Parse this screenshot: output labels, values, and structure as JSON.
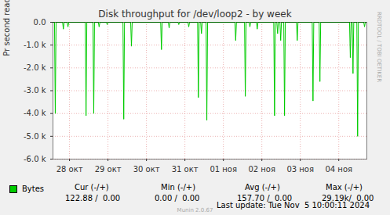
{
  "chart_data": {
    "type": "line",
    "title": "Disk throughput for /dev/loop2 - by week",
    "y_label": "Pr second read (-) / write (+)",
    "x": [
      0.07,
      0.11,
      0.13,
      0.15,
      0.32,
      0.34,
      0.36,
      0.44,
      0.46,
      0.48,
      0.91,
      0.93,
      0.95,
      1.11,
      1.13,
      1.15,
      1.25,
      1.27,
      1.29,
      1.46,
      1.48,
      1.5,
      1.89,
      1.91,
      1.93,
      2.09,
      2.11,
      2.13,
      2.87,
      2.89,
      2.91,
      3.07,
      3.09,
      3.11,
      3.32,
      3.34,
      3.36,
      3.58,
      3.6,
      3.62,
      3.83,
      3.85,
      3.87,
      3.91,
      3.93,
      3.95,
      4.05,
      4.07,
      4.09,
      4.8,
      4.82,
      4.84,
      5.05,
      5.07,
      5.09,
      5.17,
      5.19,
      5.21,
      5.36,
      5.38,
      5.4,
      5.81,
      5.83,
      5.85,
      5.89,
      5.91,
      5.93,
      5.97,
      5.99,
      6.01,
      6.07,
      6.09,
      6.11,
      6.4,
      6.42,
      6.44,
      6.81,
      6.83,
      6.85,
      6.99,
      7.01,
      7.03,
      7.78,
      7.8,
      7.82,
      7.85,
      7.87,
      7.89,
      7.97,
      7.99,
      8.01,
      8.15,
      8.17,
      8.19,
      8.23
    ],
    "series": [
      {
        "name": "Bytes",
        "color": "#00cc00",
        "values": [
          0,
          0,
          -4000,
          0,
          0,
          -300,
          0,
          0,
          -200,
          0,
          0,
          -4100,
          0,
          0,
          -4000,
          0,
          0,
          -200,
          0,
          0,
          -100,
          0,
          0,
          -4250,
          0,
          0,
          -1050,
          0,
          0,
          -1200,
          0,
          0,
          -250,
          0,
          0,
          -100,
          0,
          0,
          -200,
          0,
          0,
          -3300,
          0,
          0,
          -500,
          0,
          0,
          -4300,
          0,
          0,
          -800,
          0,
          0,
          -3250,
          0,
          0,
          -200,
          0,
          0,
          -300,
          0,
          0,
          -4100,
          0,
          0,
          -500,
          0,
          0,
          -800,
          0,
          0,
          -4100,
          0,
          0,
          -800,
          0,
          0,
          -3450,
          0,
          0,
          -2600,
          0,
          0,
          -1550,
          0,
          0,
          -2250,
          0,
          0,
          -5000,
          0,
          0,
          -200,
          0,
          0
        ]
      }
    ],
    "xlim": [
      0.07,
      8.23
    ],
    "xticks": [
      {
        "value": 0.5,
        "label": "28 окт"
      },
      {
        "value": 1.5,
        "label": "29 окт"
      },
      {
        "value": 2.5,
        "label": "30 окт"
      },
      {
        "value": 3.5,
        "label": "31 окт"
      },
      {
        "value": 4.5,
        "label": "01 ноя"
      },
      {
        "value": 5.5,
        "label": "02 ноя"
      },
      {
        "value": 6.5,
        "label": "03 ноя"
      },
      {
        "value": 7.5,
        "label": "04 ноя"
      }
    ],
    "ylim": [
      -6000,
      0
    ],
    "yticks": [
      {
        "value": 0,
        "label": "0.0"
      },
      {
        "value": -1000,
        "label": "-1.0 k"
      },
      {
        "value": -2000,
        "label": "-2.0 k"
      },
      {
        "value": -3000,
        "label": "-3.0 k"
      },
      {
        "value": -4000,
        "label": "-4.0 k"
      },
      {
        "value": -5000,
        "label": "-5.0 k"
      },
      {
        "value": -6000,
        "label": "-6.0 k"
      }
    ],
    "grid": true,
    "legend": "bottom",
    "stats": [
      {
        "label": "Cur (-/+)",
        "value": "122.88 /  0.00"
      },
      {
        "label": "Min (-/+)",
        "value": "0.00 /  0.00"
      },
      {
        "label": "Avg (-/+)",
        "value": "157.70 /  0.00"
      },
      {
        "label": "Max (-/+)",
        "value": "29.19k/  0.00"
      }
    ],
    "annotations": {
      "last_update": "Last update: Tue Nov  5 10:00:11 2024",
      "footer": "Munin 2.0.67",
      "side_text": "RRDTOOL / TOBI OETIKER"
    }
  }
}
